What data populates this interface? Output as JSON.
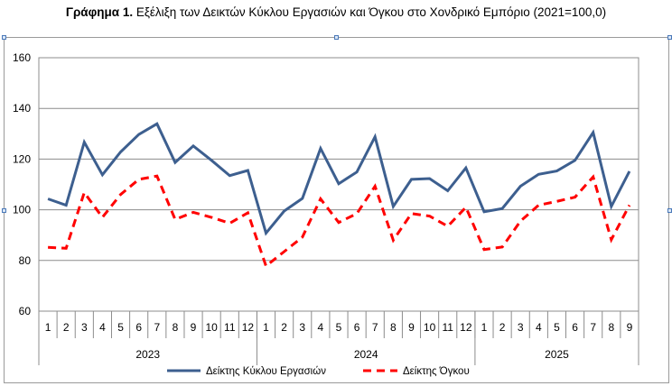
{
  "title_bold": "Γράφημα 1.",
  "title_rest": " Εξέλιξη των Δεικτών Κύκλου Εργασιών και Όγκου στο Χονδρικό Εμπόριο (2021=100,0)",
  "chart_data": {
    "type": "line",
    "title": "Γράφημα 1. Εξέλιξη των Δεικτών Κύκλου Εργασιών και Όγκου στο Χονδρικό Εμπόριο (2021=100,0)",
    "ylim": [
      60,
      160
    ],
    "yticks": [
      60,
      80,
      100,
      120,
      140,
      160
    ],
    "grid": true,
    "legend_position": "bottom",
    "month_labels": [
      "1",
      "2",
      "3",
      "4",
      "5",
      "6",
      "7",
      "8",
      "9",
      "10",
      "11",
      "12",
      "1",
      "2",
      "3",
      "4",
      "5",
      "6",
      "7",
      "8",
      "9",
      "10",
      "11",
      "12",
      "1",
      "2",
      "3",
      "4",
      "5",
      "6",
      "7",
      "8",
      "9"
    ],
    "year_groups": [
      {
        "label": "2023",
        "count": 12
      },
      {
        "label": "2024",
        "count": 12
      },
      {
        "label": "2025",
        "count": 9
      }
    ],
    "series": [
      {
        "name": "Δείκτης Κύκλου Εργασιών",
        "color": "#3d5f8f",
        "dash": "solid",
        "values": [
          104.3,
          101.8,
          126.7,
          113.8,
          122.8,
          129.7,
          133.9,
          118.7,
          125.2,
          119.5,
          113.5,
          115.5,
          90.8,
          99.5,
          104.5,
          124.2,
          110.3,
          114.9,
          128.8,
          101.3,
          112.0,
          112.3,
          107.5,
          116.5,
          99.2,
          100.5,
          109.3,
          114.0,
          115.3,
          119.5,
          130.5,
          101.3,
          115.2
        ]
      },
      {
        "name": "Δείκτης Όγκου",
        "color": "#ff0000",
        "dash": "dashed",
        "values": [
          85.2,
          84.8,
          106.8,
          97.0,
          106.0,
          112.0,
          113.3,
          96.2,
          99.0,
          97.0,
          94.7,
          98.8,
          77.8,
          83.5,
          89.2,
          104.3,
          95.0,
          98.5,
          109.3,
          88.0,
          98.5,
          97.5,
          93.5,
          101.0,
          84.3,
          85.3,
          95.5,
          101.8,
          103.3,
          105.0,
          113.0,
          88.2,
          101.8
        ]
      }
    ]
  }
}
